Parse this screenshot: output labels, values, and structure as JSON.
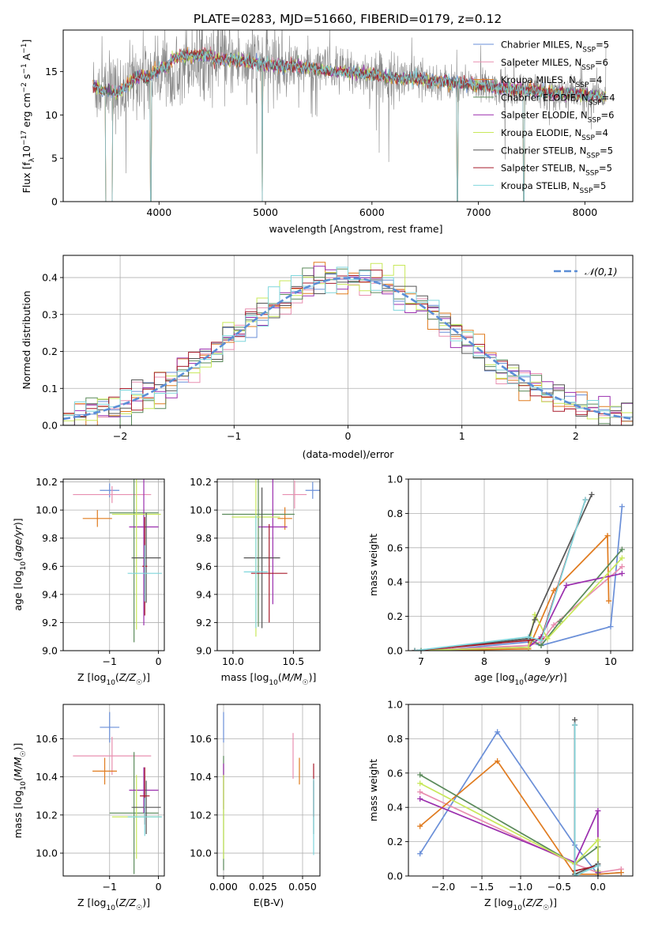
{
  "figure": {
    "title": "PLATE=0283, MJD=51660, FIBERID=0179, z=0.12"
  },
  "colors": {
    "Chabrier MILES": "#6a8fd8",
    "Salpeter MILES": "#e88fb0",
    "Kroupa MILES": "#e07b1f",
    "Chabrier ELODIE": "#5a8a5a",
    "Salpeter ELODIE": "#9b2fae",
    "Kroupa ELODIE": "#c8e85a",
    "Chabrier STELIB": "#555555",
    "Salpeter STELIB": "#a81c2c",
    "Kroupa STELIB": "#7fd6dc",
    "data": "#888888",
    "normal": "#5b8ed6"
  },
  "chart_data": [
    {
      "id": "spectrum",
      "type": "line",
      "title": "PLATE=0283, MJD=51660, FIBERID=0179, z=0.12",
      "xlabel": "wavelength [Angstrom, rest frame]",
      "ylabel": "Flux [f_λ 10^-17 erg cm^-2 s^-1 A^-1]",
      "xlim": [
        3100,
        8450
      ],
      "ylim": [
        0,
        19.8
      ],
      "xticks": [
        4000,
        5000,
        6000,
        7000,
        8000
      ],
      "yticks": [
        0,
        5,
        10,
        15
      ],
      "legend_position": "upper-right",
      "legend": [
        {
          "label": "Chabrier MILES, N",
          "sub": "SSP",
          "suffix": "=5"
        },
        {
          "label": "Salpeter MILES, N",
          "sub": "SSP",
          "suffix": "=6"
        },
        {
          "label": "Kroupa MILES, N",
          "sub": "SSP",
          "suffix": "=4"
        },
        {
          "label": "Chabrier ELODIE, N",
          "sub": "SSP",
          "suffix": "=4"
        },
        {
          "label": "Salpeter ELODIE, N",
          "sub": "SSP",
          "suffix": "=6"
        },
        {
          "label": "Kroupa ELODIE, N",
          "sub": "SSP",
          "suffix": "=4"
        },
        {
          "label": "Chabrier STELIB, N",
          "sub": "SSP",
          "suffix": "=5"
        },
        {
          "label": "Salpeter STELIB, N",
          "sub": "SSP",
          "suffix": "=5"
        },
        {
          "label": "Kroupa STELIB, N",
          "sub": "SSP",
          "suffix": "=5"
        }
      ],
      "continuum": [
        [
          3380,
          13.2
        ],
        [
          3500,
          12.8
        ],
        [
          3600,
          12.5
        ],
        [
          3700,
          13.4
        ],
        [
          3800,
          14.6
        ],
        [
          3900,
          14.2
        ],
        [
          4000,
          15.3
        ],
        [
          4200,
          16.2
        ],
        [
          4400,
          16.3
        ],
        [
          4700,
          16.4
        ],
        [
          5000,
          15.8
        ],
        [
          5300,
          15.6
        ],
        [
          5600,
          15.1
        ],
        [
          5900,
          14.8
        ],
        [
          6200,
          14.3
        ],
        [
          6500,
          14.0
        ],
        [
          6800,
          13.7
        ],
        [
          7100,
          13.3
        ],
        [
          7400,
          12.9
        ],
        [
          7700,
          12.6
        ],
        [
          8000,
          12.3
        ],
        [
          8200,
          12.1
        ]
      ],
      "noise_amplitude": 1.4,
      "dropouts": [
        [
          3500,
          3560
        ],
        [
          3920,
          3930
        ],
        [
          4965,
          4970
        ],
        [
          6800,
          6810
        ],
        [
          7420,
          7430
        ]
      ],
      "grid": false
    },
    {
      "id": "residuals",
      "type": "histogram",
      "xlabel": "(data-model)/error",
      "ylabel": "Normed distribution",
      "xlim": [
        -2.5,
        2.5
      ],
      "ylim": [
        0,
        0.46
      ],
      "xticks": [
        -2,
        -1,
        0,
        1,
        2
      ],
      "yticks": [
        0.0,
        0.1,
        0.2,
        0.3,
        0.4
      ],
      "bin_width": 0.1,
      "legend": "𝒩(0,1)",
      "legend_position": "upper-right",
      "grid": true
    },
    {
      "id": "age_vs_Z",
      "type": "errorbar",
      "xlabel": "Z [log10(Z/Z☉)]",
      "ylabel": "age  [log10(age/yr)]",
      "xlim": [
        -1.95,
        0.12
      ],
      "ylim": [
        9.0,
        10.22
      ],
      "xticks": [
        -1,
        0
      ],
      "yticks": [
        9.0,
        9.2,
        9.4,
        9.6,
        9.8,
        10.0,
        10.2
      ],
      "points": [
        {
          "model": "Chabrier MILES",
          "x": -1.0,
          "xerr": 0.2,
          "y": 10.14,
          "yerr": 0.05
        },
        {
          "model": "Salpeter MILES",
          "x": -0.95,
          "xerr": 0.8,
          "y": 10.11,
          "yerr": 0.06
        },
        {
          "model": "Kroupa MILES",
          "x": -1.25,
          "xerr": 0.3,
          "y": 9.94,
          "yerr": 0.06
        },
        {
          "model": "Chabrier ELODIE",
          "x": -0.5,
          "xerr": 0.5,
          "y": 9.98,
          "yerr": 0.92
        },
        {
          "model": "Salpeter ELODIE",
          "x": -0.3,
          "xerr": 0.3,
          "y": 9.88,
          "yerr": 0.7
        },
        {
          "model": "Kroupa ELODIE",
          "x": -0.45,
          "xerr": 0.5,
          "y": 9.97,
          "yerr": 0.82
        },
        {
          "model": "Chabrier STELIB",
          "x": -0.25,
          "xerr": 0.3,
          "y": 9.66,
          "yerr": 0.32
        },
        {
          "model": "Salpeter STELIB",
          "x": -0.28,
          "xerr": 0.05,
          "y": 9.6,
          "yerr": 0.35
        },
        {
          "model": "Kroupa STELIB",
          "x": -0.28,
          "xerr": 0.35,
          "y": 9.55,
          "yerr": 0.2
        }
      ],
      "grid": true
    },
    {
      "id": "age_vs_mass",
      "type": "errorbar",
      "xlabel": "mass [log10(M/M☉)]",
      "ylabel": "",
      "xlim": [
        9.87,
        10.72
      ],
      "ylim": [
        9.0,
        10.22
      ],
      "xticks": [
        10.0,
        10.5
      ],
      "yticks": [
        9.0,
        9.2,
        9.4,
        9.6,
        9.8,
        10.0,
        10.2
      ],
      "points": [
        {
          "model": "Chabrier MILES",
          "x": 10.66,
          "xerr": 0.06,
          "y": 10.14,
          "yerr": 0.06
        },
        {
          "model": "Salpeter MILES",
          "x": 10.51,
          "xerr": 0.1,
          "y": 10.11,
          "yerr": 0.1
        },
        {
          "model": "Kroupa MILES",
          "x": 10.43,
          "xerr": 0.06,
          "y": 9.94,
          "yerr": 0.08
        },
        {
          "model": "Chabrier ELODIE",
          "x": 10.21,
          "xerr": 0.3,
          "y": 9.97,
          "yerr": 0.8
        },
        {
          "model": "Salpeter ELODIE",
          "x": 10.33,
          "xerr": 0.12,
          "y": 9.88,
          "yerr": 0.55
        },
        {
          "model": "Kroupa ELODIE",
          "x": 10.19,
          "xerr": 0.2,
          "y": 9.95,
          "yerr": 0.85
        },
        {
          "model": "Chabrier STELIB",
          "x": 10.24,
          "xerr": 0.15,
          "y": 9.66,
          "yerr": 0.5
        },
        {
          "model": "Salpeter STELIB",
          "x": 10.3,
          "xerr": 0.15,
          "y": 9.55,
          "yerr": 0.35
        },
        {
          "model": "Kroupa STELIB",
          "x": 10.19,
          "xerr": 0.1,
          "y": 9.56,
          "yerr": 0.4
        }
      ],
      "grid": true
    },
    {
      "id": "massweight_vs_age",
      "type": "line",
      "xlabel": "age  [log10(age/yr)]",
      "ylabel": "mass weight",
      "xlim": [
        6.8,
        10.35
      ],
      "ylim": [
        0,
        1.0
      ],
      "xticks": [
        7,
        8,
        9,
        10
      ],
      "yticks": [
        0.0,
        0.2,
        0.4,
        0.6,
        0.8,
        1.0
      ],
      "series": [
        {
          "model": "Chabrier MILES",
          "x": [
            6.9,
            7.5,
            8.7,
            8.9,
            10.0,
            10.18
          ],
          "y": [
            0.0,
            0.01,
            0.05,
            0.03,
            0.14,
            0.84
          ]
        },
        {
          "model": "Salpeter MILES",
          "x": [
            6.9,
            7.5,
            8.7,
            8.9,
            9.1,
            10.18
          ],
          "y": [
            0.0,
            0.01,
            0.03,
            0.05,
            0.15,
            0.49
          ]
        },
        {
          "model": "Kroupa MILES",
          "x": [
            6.9,
            8.7,
            9.1,
            9.95,
            9.97
          ],
          "y": [
            0.0,
            0.01,
            0.35,
            0.67,
            0.29
          ]
        },
        {
          "model": "Chabrier ELODIE",
          "x": [
            7.0,
            8.7,
            8.9,
            9.2,
            10.18
          ],
          "y": [
            0.0,
            0.07,
            0.03,
            0.17,
            0.59
          ]
        },
        {
          "model": "Salpeter ELODIE",
          "x": [
            6.9,
            8.7,
            8.9,
            9.3,
            10.18
          ],
          "y": [
            0.0,
            0.02,
            0.08,
            0.38,
            0.45
          ]
        },
        {
          "model": "Kroupa ELODIE",
          "x": [
            6.9,
            8.7,
            8.8,
            9.0,
            10.18
          ],
          "y": [
            0.0,
            0.02,
            0.21,
            0.07,
            0.54
          ]
        },
        {
          "model": "Chabrier STELIB",
          "x": [
            6.9,
            8.7,
            8.8,
            9.7
          ],
          "y": [
            0.0,
            0.07,
            0.18,
            0.91
          ]
        },
        {
          "model": "Salpeter STELIB",
          "x": [
            6.9,
            8.7,
            8.9,
            9.6
          ],
          "y": [
            0.0,
            0.06,
            0.07,
            0.88
          ]
        },
        {
          "model": "Kroupa STELIB",
          "x": [
            6.9,
            8.7,
            8.9,
            9.6
          ],
          "y": [
            0.0,
            0.08,
            0.06,
            0.88
          ]
        }
      ],
      "grid": true
    },
    {
      "id": "mass_vs_Z",
      "type": "errorbar",
      "xlabel": "Z [log10(Z/Z☉)]",
      "ylabel": "mass [log10(M/M☉)]",
      "xlim": [
        -1.95,
        0.12
      ],
      "ylim": [
        9.88,
        10.78
      ],
      "xticks": [
        -1,
        0
      ],
      "yticks": [
        10.0,
        10.2,
        10.4,
        10.6
      ],
      "points": [
        {
          "model": "Chabrier MILES",
          "x": -1.0,
          "xerr": 0.2,
          "y": 10.66,
          "yerr": 0.08
        },
        {
          "model": "Salpeter MILES",
          "x": -0.95,
          "xerr": 0.8,
          "y": 10.51,
          "yerr": 0.1
        },
        {
          "model": "Kroupa MILES",
          "x": -1.1,
          "xerr": 0.25,
          "y": 10.43,
          "yerr": 0.07
        },
        {
          "model": "Chabrier ELODIE",
          "x": -0.5,
          "xerr": 0.5,
          "y": 10.21,
          "yerr": 0.32
        },
        {
          "model": "Salpeter ELODIE",
          "x": -0.3,
          "xerr": 0.3,
          "y": 10.33,
          "yerr": 0.12
        },
        {
          "model": "Kroupa ELODIE",
          "x": -0.45,
          "xerr": 0.5,
          "y": 10.19,
          "yerr": 0.22
        },
        {
          "model": "Chabrier STELIB",
          "x": -0.25,
          "xerr": 0.3,
          "y": 10.24,
          "yerr": 0.14
        },
        {
          "model": "Salpeter STELIB",
          "x": -0.28,
          "xerr": 0.1,
          "y": 10.3,
          "yerr": 0.15
        },
        {
          "model": "Kroupa STELIB",
          "x": -0.28,
          "xerr": 0.35,
          "y": 10.19,
          "yerr": 0.1
        }
      ],
      "grid": true
    },
    {
      "id": "mass_vs_ebv",
      "type": "errorbar",
      "xlabel": "E(B-V)",
      "ylabel": "",
      "xlim": [
        -0.004,
        0.061
      ],
      "ylim": [
        9.88,
        10.78
      ],
      "xticks": [
        0.0,
        0.025,
        0.05
      ],
      "yticks": [
        10.0,
        10.2,
        10.4,
        10.6
      ],
      "points": [
        {
          "model": "Chabrier MILES",
          "x": 0.0,
          "xerr": 0.0,
          "y": 10.66,
          "yerr": 0.08
        },
        {
          "model": "Salpeter MILES",
          "x": 0.044,
          "xerr": 0.0,
          "y": 10.51,
          "yerr": 0.12
        },
        {
          "model": "Kroupa MILES",
          "x": 0.048,
          "xerr": 0.0,
          "y": 10.43,
          "yerr": 0.07
        },
        {
          "model": "Chabrier ELODIE",
          "x": 0.0,
          "xerr": 0.0,
          "y": 10.21,
          "yerr": 0.3
        },
        {
          "model": "Salpeter ELODIE",
          "x": 0.0,
          "xerr": 0.0,
          "y": 10.35,
          "yerr": 0.12
        },
        {
          "model": "Kroupa ELODIE",
          "x": 0.0,
          "xerr": 0.0,
          "y": 10.19,
          "yerr": 0.22
        },
        {
          "model": "Chabrier STELIB",
          "x": 0.057,
          "xerr": 0.0,
          "y": 10.24,
          "yerr": 0.14
        },
        {
          "model": "Salpeter STELIB",
          "x": 0.057,
          "xerr": 0.0,
          "y": 10.33,
          "yerr": 0.14
        },
        {
          "model": "Kroupa STELIB",
          "x": 0.057,
          "xerr": 0.0,
          "y": 10.19,
          "yerr": 0.2
        }
      ],
      "grid": true
    },
    {
      "id": "massweight_vs_Z",
      "type": "line",
      "xlabel": "Z [log10(Z/Z☉)]",
      "ylabel": "mass weight",
      "xlim": [
        -2.45,
        0.45
      ],
      "ylim": [
        0,
        1.0
      ],
      "xticks": [
        -2.0,
        -1.5,
        -1.0,
        -0.5,
        0.0
      ],
      "yticks": [
        0.0,
        0.2,
        0.4,
        0.6,
        0.8,
        1.0
      ],
      "series": [
        {
          "model": "Chabrier MILES",
          "x": [
            -2.3,
            -1.3,
            -0.3,
            0.0,
            0.0,
            0.3
          ],
          "y": [
            0.13,
            0.84,
            0.18,
            0.01,
            0.01,
            0.02
          ]
        },
        {
          "model": "Salpeter MILES",
          "x": [
            -2.3,
            -0.3,
            0.0,
            0.3
          ],
          "y": [
            0.49,
            0.07,
            0.02,
            0.04
          ]
        },
        {
          "model": "Kroupa MILES",
          "x": [
            -2.3,
            -1.3,
            -0.3,
            0.0,
            0.3
          ],
          "y": [
            0.29,
            0.67,
            0.01,
            0.01,
            0.02
          ]
        },
        {
          "model": "Chabrier ELODIE",
          "x": [
            -2.3,
            -0.3,
            0.0,
            0.0
          ],
          "y": [
            0.59,
            0.07,
            0.17,
            0.02
          ]
        },
        {
          "model": "Salpeter ELODIE",
          "x": [
            -2.3,
            -0.3,
            0.0,
            0.0
          ],
          "y": [
            0.45,
            0.08,
            0.38,
            0.02
          ]
        },
        {
          "model": "Kroupa ELODIE",
          "x": [
            -2.3,
            -0.3,
            0.0,
            0.0
          ],
          "y": [
            0.54,
            0.07,
            0.21,
            0.03
          ]
        },
        {
          "model": "Chabrier STELIB",
          "x": [
            -0.3,
            -0.3,
            0.0,
            0.0
          ],
          "y": [
            0.91,
            0.01,
            0.07,
            0.0
          ]
        },
        {
          "model": "Salpeter STELIB",
          "x": [
            -0.3,
            -0.3,
            0.0
          ],
          "y": [
            0.88,
            0.03,
            0.06
          ]
        },
        {
          "model": "Kroupa STELIB",
          "x": [
            -0.3,
            -0.3,
            0.0
          ],
          "y": [
            0.88,
            0.0,
            0.06
          ]
        }
      ],
      "grid": true
    }
  ]
}
